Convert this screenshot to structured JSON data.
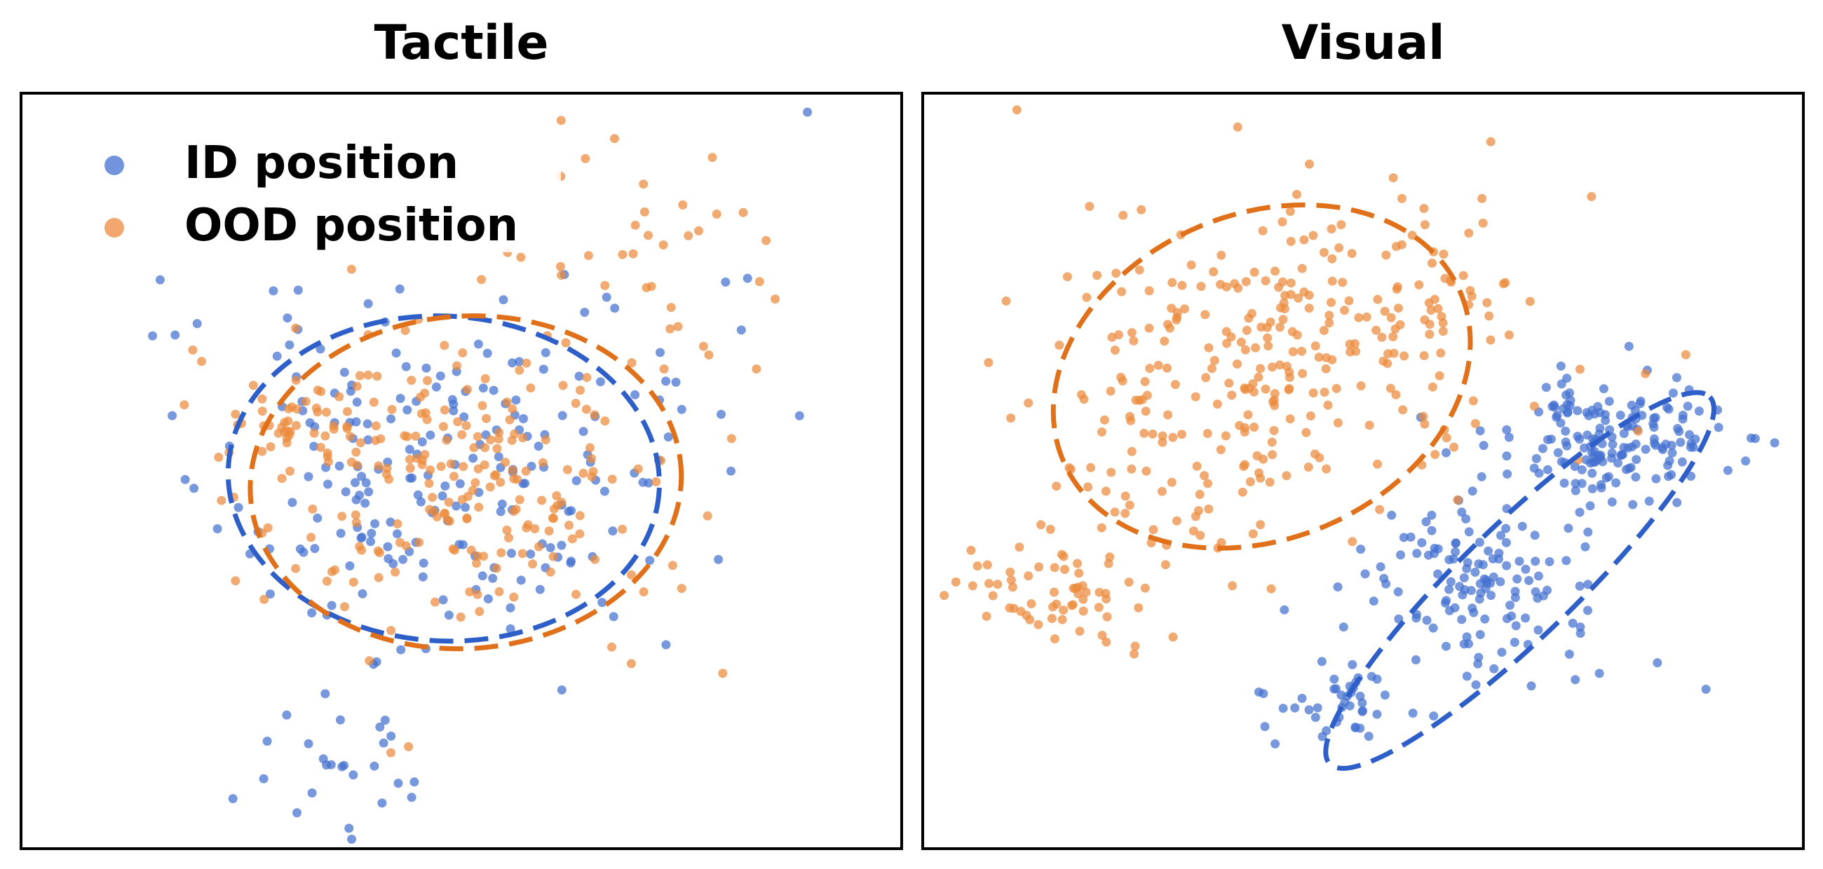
{
  "chart_data": [
    {
      "type": "scatter",
      "title": "Tactile",
      "xlabel": "",
      "ylabel": "",
      "grid": false,
      "xlim": [
        0,
        100
      ],
      "ylim": [
        0,
        100
      ],
      "legend": {
        "placement": "top-left",
        "entries": [
          {
            "label": "ID position",
            "color": "#4470d0"
          },
          {
            "label": "OOD position",
            "color": "#ec8a3c"
          }
        ]
      },
      "series": [
        {
          "name": "ID position",
          "color": "#4470d0",
          "ellipse": {
            "center": [
              48,
              49
            ],
            "radii": [
              24.5,
              21.5
            ],
            "angle": -3,
            "color": "#2e5fc8"
          },
          "clusters": [
            {
              "center": [
                47,
                49
              ],
              "spread": [
                12,
                11
              ],
              "count": 210,
              "seed": 11
            },
            {
              "center": [
                35,
                11
              ],
              "spread": [
                5,
                4
              ],
              "count": 25,
              "seed": 12
            }
          ],
          "extra_points": [
            [
              89.3,
              97.5
            ],
            [
              15.8,
              75.3
            ],
            [
              80,
              75
            ],
            [
              82.5,
              75.5
            ],
            [
              79.5,
              57.5
            ],
            [
              88.4,
              57.3
            ],
            [
              73.5,
              54.5
            ],
            [
              72.5,
              59.4
            ],
            [
              17.5,
              68
            ],
            [
              20,
              69.5
            ],
            [
              64,
              71
            ],
            [
              66.5,
              73
            ]
          ]
        },
        {
          "name": "OOD position",
          "color": "#ec8a3c",
          "ellipse": {
            "center": [
              50.5,
              48.5
            ],
            "radii": [
              24.5,
              22
            ],
            "angle": 4,
            "color": "#e0711a"
          },
          "clusters": [
            {
              "center": [
                50,
                49
              ],
              "spread": [
                12,
                10.5
              ],
              "count": 210,
              "seed": 21
            },
            {
              "center": [
                31,
                57
              ],
              "spread": [
                4,
                2.5
              ],
              "count": 40,
              "seed": 22
            },
            {
              "center": [
                68,
                78
              ],
              "spread": [
                8,
                9
              ],
              "count": 28,
              "seed": 23
            }
          ],
          "extra_points": [
            [
              67.4,
              94
            ],
            [
              78.5,
              91.5
            ],
            [
              61.3,
              89
            ],
            [
              79,
              84
            ],
            [
              84.6,
              80.5
            ],
            [
              27.6,
              33
            ],
            [
              44,
              13.5
            ],
            [
              42,
              12.7
            ],
            [
              69.3,
              24.5
            ],
            [
              74,
              37.5
            ],
            [
              19.5,
              66
            ],
            [
              20.5,
              64.5
            ],
            [
              83.5,
              63.5
            ],
            [
              77.5,
              66.5
            ]
          ]
        }
      ]
    },
    {
      "type": "scatter",
      "title": "Visual",
      "xlabel": "",
      "ylabel": "",
      "grid": false,
      "xlim": [
        0,
        100
      ],
      "ylim": [
        0,
        100
      ],
      "series": [
        {
          "name": "ID position",
          "color": "#4470d0",
          "ellipse": {
            "center": [
              67.8,
              35.5
            ],
            "radii": [
              30,
              7.5
            ],
            "angle": 44,
            "color": "#2e5fc8"
          },
          "clusters": [
            {
              "center": [
                78,
                54
              ],
              "spread": [
                6.5,
                4
              ],
              "count": 170,
              "seed": 31
            },
            {
              "center": [
                63,
                35
              ],
              "spread": [
                7,
                6
              ],
              "count": 130,
              "seed": 32
            },
            {
              "center": [
                47,
                19
              ],
              "spread": [
                4,
                2.2
              ],
              "count": 40,
              "seed": 33
            }
          ],
          "extra_points": [
            [
              82.5,
              46
            ],
            [
              85,
              49.5
            ],
            [
              54,
              34
            ],
            [
              56,
              25
            ],
            [
              48.5,
              21.5
            ]
          ]
        },
        {
          "name": "OOD position",
          "color": "#ec8a3c",
          "ellipse": {
            "center": [
              38.5,
              62.5
            ],
            "radii": [
              24.5,
              21.5
            ],
            "angle": 23,
            "color": "#e0711a"
          },
          "clusters": [
            {
              "center": [
                44,
                70
              ],
              "spread": [
                13,
                10
              ],
              "count": 230,
              "seed": 41
            },
            {
              "center": [
                30,
                52
              ],
              "spread": [
                9,
                8
              ],
              "count": 90,
              "seed": 42
            },
            {
              "center": [
                15,
                33
              ],
              "spread": [
                6,
                4
              ],
              "count": 60,
              "seed": 43
            }
          ],
          "extra_points": [
            [
              58,
              79
            ],
            [
              60,
              75
            ],
            [
              62,
              72
            ],
            [
              57,
              70
            ],
            [
              10,
              57
            ],
            [
              12,
              59
            ],
            [
              8.5,
              35
            ]
          ]
        }
      ]
    }
  ]
}
